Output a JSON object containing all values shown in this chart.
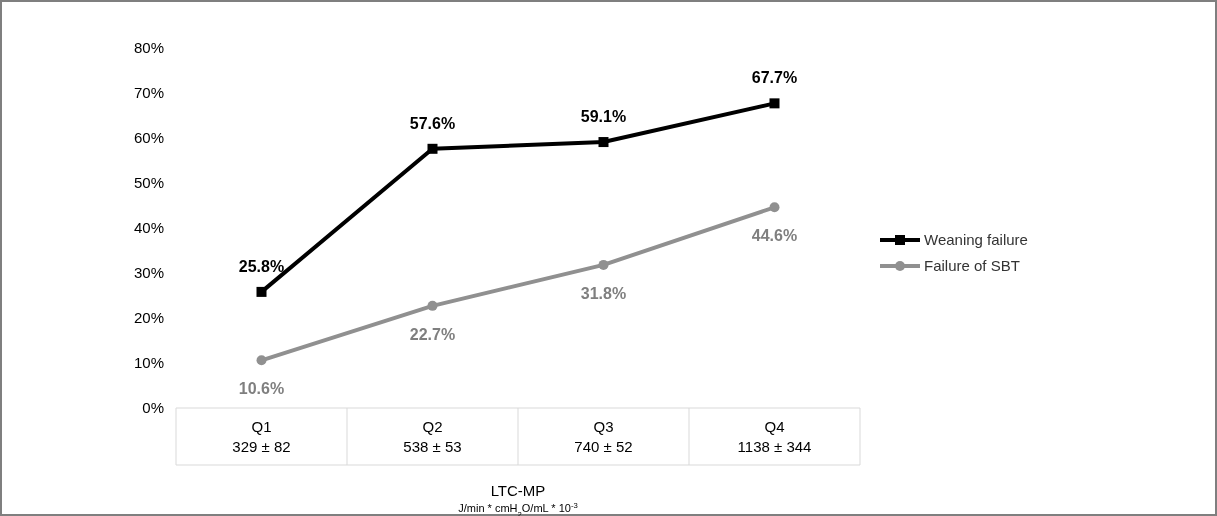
{
  "chart_data": {
    "type": "line",
    "categories": [
      "Q1\n329 ± 82",
      "Q2\n538 ± 53",
      "Q3\n740 ± 52",
      "Q4\n1138 ± 344"
    ],
    "xlabel": "LTC-MP",
    "annotations": [
      "J/min * cmH$_{2}$O/mL * 10$^{-3}$"
    ],
    "series": [
      {
        "name": "Weaning failure",
        "color": "#000000",
        "marker": "square",
        "values": [
          25.8,
          57.6,
          59.1,
          67.7
        ],
        "value_labels": [
          "25.8%",
          "57.6%",
          "59.1%",
          "67.7%"
        ]
      },
      {
        "name": "Failure of SBT",
        "color": "#909090",
        "marker": "circle",
        "values": [
          10.6,
          22.7,
          31.8,
          44.6
        ],
        "value_labels": [
          "10.6%",
          "22.7%",
          "31.8%",
          "44.6%"
        ]
      }
    ],
    "ylim": [
      0,
      80
    ],
    "yticks": [
      {
        "value": 0,
        "label": "0%"
      },
      {
        "value": 10,
        "label": "10%"
      },
      {
        "value": 20,
        "label": "20%"
      },
      {
        "value": 30,
        "label": "30%"
      },
      {
        "value": 40,
        "label": "40%"
      },
      {
        "value": 50,
        "label": "50%"
      },
      {
        "value": 60,
        "label": "60%"
      },
      {
        "value": 70,
        "label": "70%"
      },
      {
        "value": 80,
        "label": "80%"
      }
    ],
    "legend": "right",
    "grid": false,
    "line_style": "solid"
  }
}
